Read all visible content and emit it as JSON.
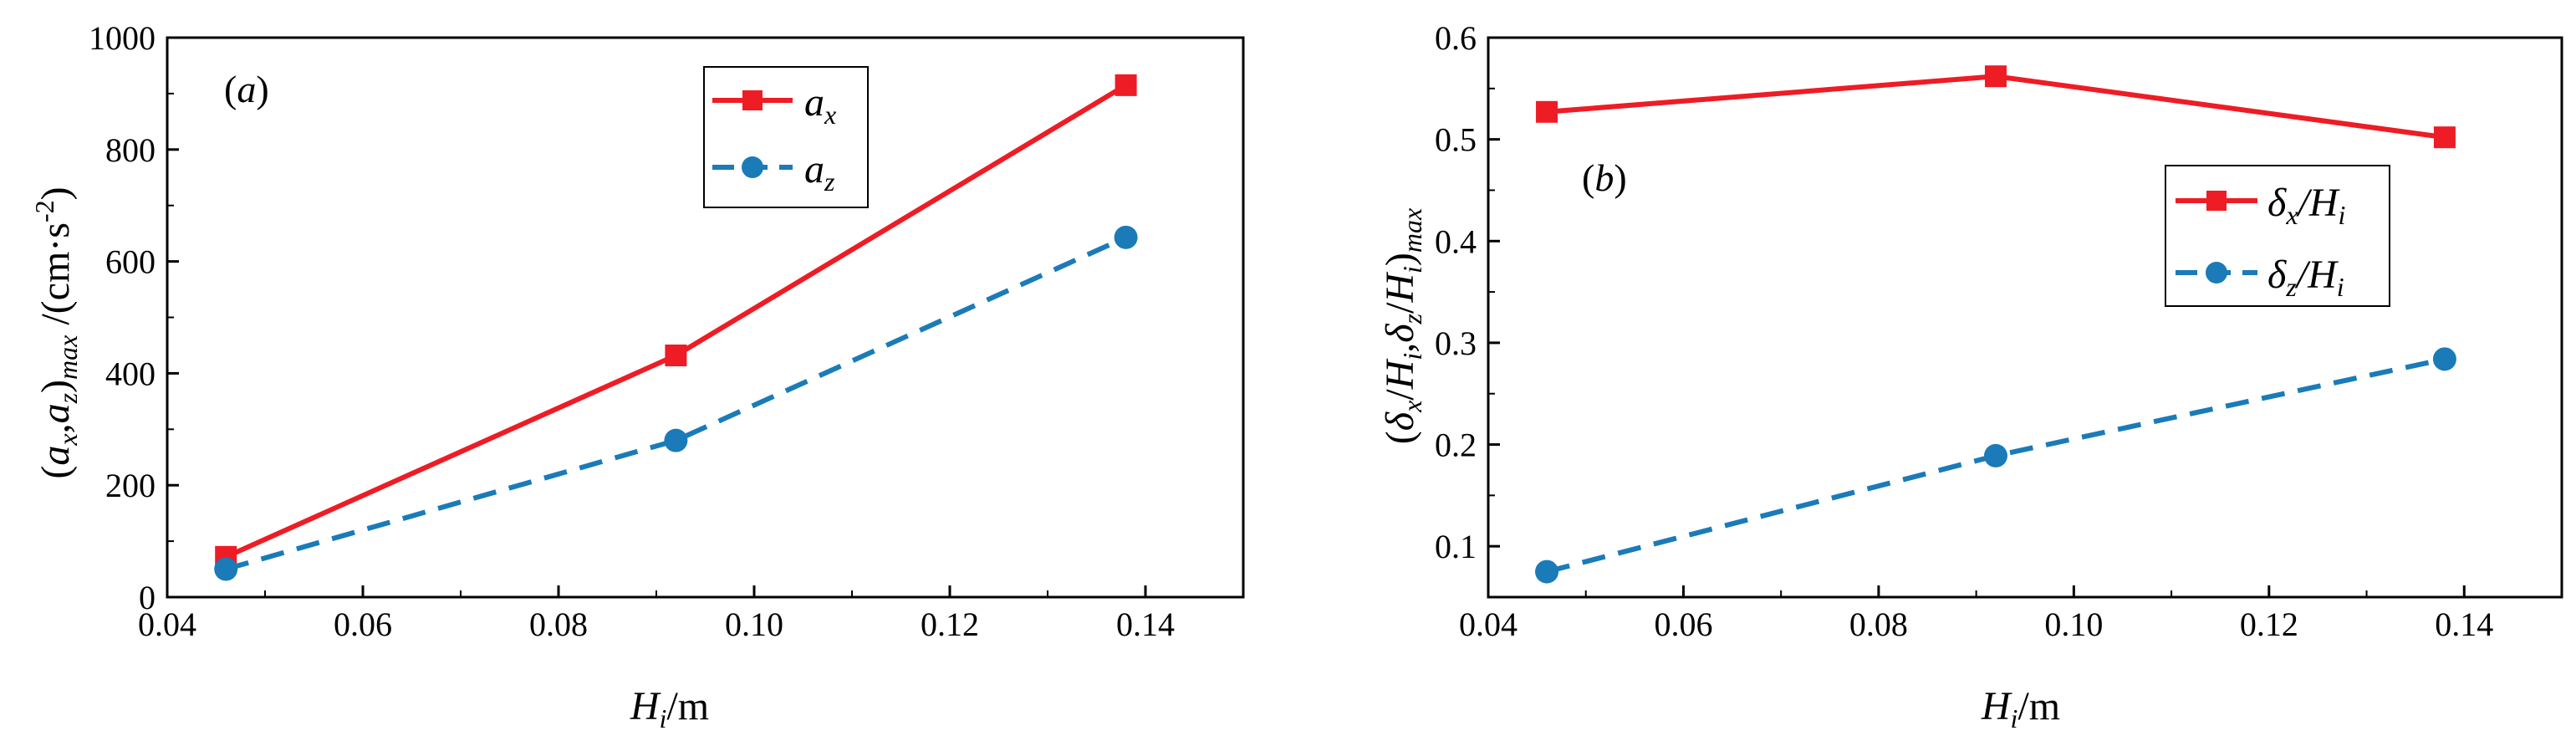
{
  "chart_data": [
    {
      "type": "line",
      "panel_label_open": "(",
      "panel_label_letter": "a",
      "panel_label_close": ")",
      "xlabel": "H_i/m",
      "xlabel_main": "H",
      "xlabel_sub": "i",
      "xlabel_unit": "/m",
      "ylabel": "(a_x,a_z)_max /(cm·s^-2)",
      "ylabel_parts": {
        "open": "(",
        "a1": "a",
        "x": "x",
        "comma": ",",
        "a2": "a",
        "z": "z",
        "close": ")",
        "max": "max",
        "unit": " /(cm·s",
        "exp": "-2",
        "unit_close": ")"
      },
      "xlim": [
        0.04,
        0.15
      ],
      "ylim": [
        0,
        1000
      ],
      "xticks": [
        "0.04",
        "0.06",
        "0.08",
        "0.10",
        "0.12",
        "0.14"
      ],
      "xtick_values": [
        0.04,
        0.06,
        0.08,
        0.1,
        0.12,
        0.14
      ],
      "yticks": [
        "0",
        "200",
        "400",
        "600",
        "800",
        "1000"
      ],
      "ytick_values": [
        0,
        200,
        400,
        600,
        800,
        1000
      ],
      "x": [
        0.046,
        0.092,
        0.138
      ],
      "series": [
        {
          "name": "a_x",
          "legend_main": "a",
          "legend_sub": "x",
          "color": "#ee1c25",
          "marker": "square",
          "dash": "solid",
          "values": [
            72,
            432,
            915
          ]
        },
        {
          "name": "a_z",
          "legend_main": "a",
          "legend_sub": "z",
          "color": "#1a7bb8",
          "marker": "circle",
          "dash": "dashed",
          "values": [
            50,
            280,
            643
          ]
        }
      ],
      "legend": "top-right"
    },
    {
      "type": "line",
      "panel_label_open": "(",
      "panel_label_letter": "b",
      "panel_label_close": ")",
      "xlabel": "H_i/m",
      "xlabel_main": "H",
      "xlabel_sub": "i",
      "xlabel_unit": "/m",
      "ylabel": "(δ_x/H_i,δ_z/H_i)_max",
      "ylabel_parts": {
        "open": "(",
        "d1": "δ",
        "x": "x",
        "slash1": "/",
        "h1": "H",
        "i1": "i",
        "comma": ",",
        "d2": "δ",
        "z": "z",
        "slash2": "/",
        "h2": "H",
        "i2": "i",
        "close": ")",
        "max": "max"
      },
      "xlim": [
        0.04,
        0.15
      ],
      "ylim": [
        0.05,
        0.6
      ],
      "xticks": [
        "0.04",
        "0.06",
        "0.08",
        "0.10",
        "0.12",
        "0.14"
      ],
      "xtick_values": [
        0.04,
        0.06,
        0.08,
        0.1,
        0.12,
        0.14
      ],
      "yticks": [
        "0.1",
        "0.2",
        "0.3",
        "0.4",
        "0.5",
        "0.6"
      ],
      "ytick_values": [
        0.1,
        0.2,
        0.3,
        0.4,
        0.5,
        0.6
      ],
      "x": [
        0.046,
        0.092,
        0.138
      ],
      "series": [
        {
          "name": "δ_x/H_i",
          "legend_main": "δ",
          "legend_sub": "x",
          "legend_slash": "/",
          "legend_h": "H",
          "legend_hsub": "i",
          "color": "#ee1c25",
          "marker": "square",
          "dash": "solid",
          "values": [
            0.527,
            0.562,
            0.502
          ]
        },
        {
          "name": "δ_z/H_i",
          "legend_main": "δ",
          "legend_sub": "z",
          "legend_slash": "/",
          "legend_h": "H",
          "legend_hsub": "i",
          "color": "#1a7bb8",
          "marker": "circle",
          "dash": "dashed",
          "values": [
            0.075,
            0.189,
            0.284
          ]
        }
      ],
      "legend": "center-right"
    }
  ]
}
